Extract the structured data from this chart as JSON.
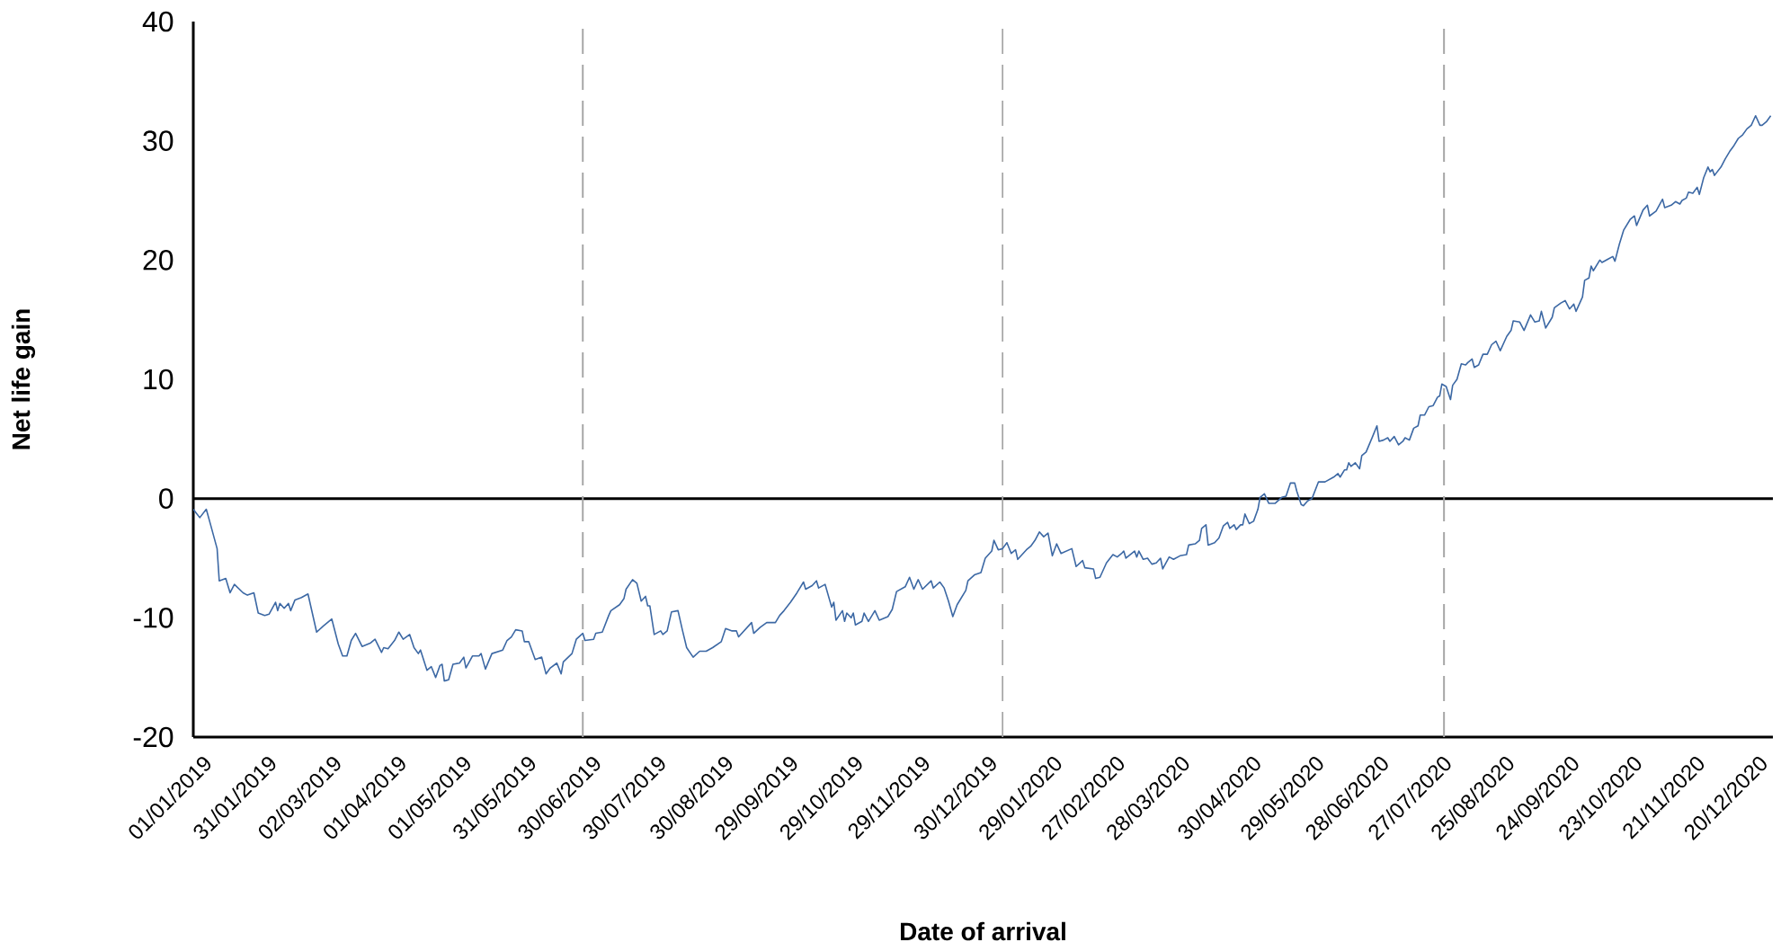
{
  "chart_data": {
    "type": "line",
    "xlabel": "Date of arrival",
    "ylabel": "Net life gain",
    "xlim": [
      "2019-01-01",
      "2020-12-31"
    ],
    "ylim": [
      -20,
      40
    ],
    "yticks": [
      -20,
      -10,
      0,
      10,
      20,
      30,
      40
    ],
    "xticks": [
      {
        "value": "2019-01-01",
        "label": "01/01/2019"
      },
      {
        "value": "2019-01-31",
        "label": "31/01/2019"
      },
      {
        "value": "2019-03-02",
        "label": "02/03/2019"
      },
      {
        "value": "2019-04-01",
        "label": "01/04/2019"
      },
      {
        "value": "2019-05-01",
        "label": "01/05/2019"
      },
      {
        "value": "2019-05-31",
        "label": "31/05/2019"
      },
      {
        "value": "2019-06-30",
        "label": "30/06/2019"
      },
      {
        "value": "2019-07-30",
        "label": "30/07/2019"
      },
      {
        "value": "2019-08-30",
        "label": "30/08/2019"
      },
      {
        "value": "2019-09-29",
        "label": "29/09/2019"
      },
      {
        "value": "2019-10-29",
        "label": "29/10/2019"
      },
      {
        "value": "2019-11-29",
        "label": "29/11/2019"
      },
      {
        "value": "2019-12-30",
        "label": "30/12/2019"
      },
      {
        "value": "2020-01-29",
        "label": "29/01/2020"
      },
      {
        "value": "2020-02-27",
        "label": "27/02/2020"
      },
      {
        "value": "2020-03-28",
        "label": "28/03/2020"
      },
      {
        "value": "2020-04-30",
        "label": "30/04/2020"
      },
      {
        "value": "2020-05-29",
        "label": "29/05/2020"
      },
      {
        "value": "2020-06-28",
        "label": "28/06/2020"
      },
      {
        "value": "2020-07-27",
        "label": "27/07/2020"
      },
      {
        "value": "2020-08-25",
        "label": "25/08/2020"
      },
      {
        "value": "2020-09-24",
        "label": "24/09/2020"
      },
      {
        "value": "2020-10-23",
        "label": "23/10/2020"
      },
      {
        "value": "2020-11-21",
        "label": "21/11/2020"
      },
      {
        "value": "2020-12-20",
        "label": "20/12/2020"
      }
    ],
    "ref_lines": [
      {
        "axis": "y",
        "value": 0,
        "color": "#000000",
        "line_style": "solid"
      },
      {
        "axis": "x",
        "value": "2019-06-30",
        "color": "#a6a6a6",
        "line_style": "dashed"
      },
      {
        "axis": "x",
        "value": "2020-01-10",
        "color": "#a6a6a6",
        "line_style": "dashed"
      },
      {
        "axis": "x",
        "value": "2020-08-01",
        "color": "#a6a6a6",
        "line_style": "dashed"
      }
    ],
    "x": [
      "2019-01-01",
      "2019-01-04",
      "2019-01-07",
      "2019-01-09",
      "2019-01-12",
      "2019-01-13",
      "2019-01-16",
      "2019-01-18",
      "2019-01-20",
      "2019-01-24",
      "2019-01-26",
      "2019-01-29",
      "2019-01-31",
      "2019-02-03",
      "2019-02-05",
      "2019-02-08",
      "2019-02-09",
      "2019-02-10",
      "2019-02-12",
      "2019-02-14",
      "2019-02-15",
      "2019-02-17",
      "2019-02-20",
      "2019-02-23",
      "2019-02-25",
      "2019-02-27",
      "2019-03-02",
      "2019-03-06",
      "2019-03-07",
      "2019-03-09",
      "2019-03-11",
      "2019-03-13",
      "2019-03-15",
      "2019-03-17",
      "2019-03-20",
      "2019-03-24",
      "2019-03-26",
      "2019-03-29",
      "2019-03-30",
      "2019-04-01",
      "2019-04-04",
      "2019-04-06",
      "2019-04-08",
      "2019-04-11",
      "2019-04-13",
      "2019-04-15",
      "2019-04-16",
      "2019-04-19",
      "2019-04-21",
      "2019-04-23",
      "2019-04-25",
      "2019-04-26",
      "2019-04-27",
      "2019-04-29",
      "2019-05-01",
      "2019-05-04",
      "2019-05-06",
      "2019-05-07",
      "2019-05-10",
      "2019-05-13",
      "2019-05-14",
      "2019-05-16",
      "2019-05-19",
      "2019-05-24",
      "2019-05-26",
      "2019-05-28",
      "2019-05-30",
      "2019-06-02",
      "2019-06-03",
      "2019-06-05",
      "2019-06-08",
      "2019-06-11",
      "2019-06-13",
      "2019-06-15",
      "2019-06-18",
      "2019-06-20",
      "2019-06-21",
      "2019-06-25",
      "2019-06-27",
      "2019-06-30",
      "2019-07-01",
      "2019-07-05",
      "2019-07-06",
      "2019-07-09",
      "2019-07-12",
      "2019-07-13",
      "2019-07-17",
      "2019-07-19",
      "2019-07-20",
      "2019-07-23",
      "2019-07-25",
      "2019-07-27",
      "2019-07-29",
      "2019-07-30",
      "2019-07-31",
      "2019-08-02",
      "2019-08-05",
      "2019-08-06",
      "2019-08-08",
      "2019-08-10",
      "2019-08-13",
      "2019-08-15",
      "2019-08-17",
      "2019-08-20",
      "2019-08-23",
      "2019-08-26",
      "2019-08-29",
      "2019-09-02",
      "2019-09-04",
      "2019-09-07",
      "2019-09-09",
      "2019-09-10",
      "2019-09-12",
      "2019-09-16",
      "2019-09-17",
      "2019-09-20",
      "2019-09-23",
      "2019-09-27",
      "2019-09-29",
      "2019-10-01",
      "2019-10-04",
      "2019-10-07",
      "2019-10-10",
      "2019-10-11",
      "2019-10-14",
      "2019-10-16",
      "2019-10-17",
      "2019-10-20",
      "2019-10-23",
      "2019-10-24",
      "2019-10-25",
      "2019-10-28",
      "2019-10-29",
      "2019-10-30",
      "2019-11-01",
      "2019-11-02",
      "2019-11-03",
      "2019-11-06",
      "2019-11-07",
      "2019-11-09",
      "2019-11-12",
      "2019-11-14",
      "2019-11-18",
      "2019-11-20",
      "2019-11-22",
      "2019-11-26",
      "2019-11-28",
      "2019-11-30",
      "2019-12-02",
      "2019-12-04",
      "2019-12-08",
      "2019-12-09",
      "2019-12-12",
      "2019-12-14",
      "2019-12-16",
      "2019-12-18",
      "2019-12-20",
      "2019-12-24",
      "2019-12-25",
      "2019-12-28",
      "2019-12-31",
      "2020-01-02",
      "2020-01-05",
      "2020-01-06",
      "2020-01-08",
      "2020-01-10",
      "2020-01-12",
      "2020-01-14",
      "2020-01-16",
      "2020-01-17",
      "2020-01-19",
      "2020-01-21",
      "2020-01-23",
      "2020-01-25",
      "2020-01-27",
      "2020-01-29",
      "2020-01-31",
      "2020-02-02",
      "2020-02-04",
      "2020-02-06",
      "2020-02-11",
      "2020-02-13",
      "2020-02-16",
      "2020-02-17",
      "2020-02-21",
      "2020-02-22",
      "2020-02-24",
      "2020-02-27",
      "2020-03-01",
      "2020-03-03",
      "2020-03-05",
      "2020-03-06",
      "2020-03-07",
      "2020-03-11",
      "2020-03-12",
      "2020-03-13",
      "2020-03-15",
      "2020-03-17",
      "2020-03-19",
      "2020-03-21",
      "2020-03-23",
      "2020-03-24",
      "2020-03-27",
      "2020-03-29",
      "2020-04-01",
      "2020-04-04",
      "2020-04-05",
      "2020-04-08",
      "2020-04-10",
      "2020-04-11",
      "2020-04-13",
      "2020-04-14",
      "2020-04-17",
      "2020-04-19",
      "2020-04-21",
      "2020-04-23",
      "2020-04-24",
      "2020-04-26",
      "2020-04-27",
      "2020-04-29",
      "2020-04-30",
      "2020-05-01",
      "2020-05-03",
      "2020-05-05",
      "2020-05-07",
      "2020-05-08",
      "2020-05-10",
      "2020-05-12",
      "2020-05-15",
      "2020-05-18",
      "2020-05-20",
      "2020-05-22",
      "2020-05-24",
      "2020-05-25",
      "2020-05-27",
      "2020-05-28",
      "2020-05-30",
      "2020-06-01",
      "2020-06-04",
      "2020-06-07",
      "2020-06-11",
      "2020-06-13",
      "2020-06-14",
      "2020-06-16",
      "2020-06-17",
      "2020-06-18",
      "2020-06-19",
      "2020-06-21",
      "2020-06-23",
      "2020-06-24",
      "2020-06-26",
      "2020-06-29",
      "2020-07-01",
      "2020-07-02",
      "2020-07-04",
      "2020-07-06",
      "2020-07-07",
      "2020-07-09",
      "2020-07-11",
      "2020-07-13",
      "2020-07-14",
      "2020-07-16",
      "2020-07-18",
      "2020-07-20",
      "2020-07-21",
      "2020-07-23",
      "2020-07-25",
      "2020-07-27",
      "2020-07-29",
      "2020-07-30",
      "2020-07-31",
      "2020-08-02",
      "2020-08-04",
      "2020-08-05",
      "2020-08-07",
      "2020-08-09",
      "2020-08-11",
      "2020-08-12",
      "2020-08-14",
      "2020-08-15",
      "2020-08-17",
      "2020-08-19",
      "2020-08-21",
      "2020-08-23",
      "2020-08-25",
      "2020-08-27",
      "2020-08-30",
      "2020-09-01",
      "2020-09-02",
      "2020-09-05",
      "2020-09-07",
      "2020-09-10",
      "2020-09-12",
      "2020-09-14",
      "2020-09-15",
      "2020-09-17",
      "2020-09-19",
      "2020-09-20",
      "2020-09-21",
      "2020-09-24",
      "2020-09-26",
      "2020-09-28",
      "2020-09-30",
      "2020-10-01",
      "2020-10-02",
      "2020-10-04",
      "2020-10-05",
      "2020-10-07",
      "2020-10-08",
      "2020-10-09",
      "2020-10-12",
      "2020-10-13",
      "2020-10-16",
      "2020-10-18",
      "2020-10-19",
      "2020-10-21",
      "2020-10-23",
      "2020-10-26",
      "2020-10-28",
      "2020-10-29",
      "2020-11-01",
      "2020-11-03",
      "2020-11-04",
      "2020-11-07",
      "2020-11-10",
      "2020-11-11",
      "2020-11-14",
      "2020-11-16",
      "2020-11-18",
      "2020-11-19",
      "2020-11-21",
      "2020-11-22",
      "2020-11-24",
      "2020-11-26",
      "2020-11-27",
      "2020-11-29",
      "2020-12-01",
      "2020-12-02",
      "2020-12-03",
      "2020-12-04",
      "2020-12-07",
      "2020-12-09",
      "2020-12-11",
      "2020-12-13",
      "2020-12-15",
      "2020-12-17",
      "2020-12-19",
      "2020-12-21",
      "2020-12-23",
      "2020-12-25",
      "2020-12-26",
      "2020-12-28",
      "2020-12-30"
    ],
    "series": [
      {
        "color": "#3c68a4",
        "values": [
          -0.9,
          -1.6,
          -0.9,
          -2.2,
          -4.2,
          -6.9,
          -6.7,
          -7.9,
          -7.2,
          -7.9,
          -8.1,
          -7.9,
          -9.6,
          -9.8,
          -9.7,
          -8.7,
          -9.4,
          -8.8,
          -9.2,
          -8.8,
          -9.4,
          -8.5,
          -8.3,
          -8.0,
          -9.6,
          -11.2,
          -10.7,
          -10.1,
          -10.8,
          -12.2,
          -13.2,
          -13.2,
          -11.9,
          -11.3,
          -12.4,
          -12.1,
          -11.8,
          -12.9,
          -12.5,
          -12.6,
          -11.9,
          -11.2,
          -11.8,
          -11.4,
          -12.5,
          -13.0,
          -12.7,
          -14.4,
          -14.1,
          -15.0,
          -14.0,
          -13.9,
          -15.3,
          -15.2,
          -13.9,
          -13.8,
          -13.3,
          -14.2,
          -13.2,
          -13.2,
          -13.0,
          -14.3,
          -13.0,
          -12.7,
          -11.9,
          -11.6,
          -11.0,
          -11.1,
          -12.0,
          -12.0,
          -13.5,
          -13.3,
          -14.7,
          -14.2,
          -13.8,
          -14.7,
          -13.7,
          -13.0,
          -11.8,
          -11.3,
          -11.9,
          -11.8,
          -11.3,
          -11.2,
          -9.8,
          -9.4,
          -8.9,
          -8.4,
          -7.6,
          -6.8,
          -7.1,
          -8.6,
          -8.2,
          -9.0,
          -9.0,
          -11.4,
          -11.1,
          -11.4,
          -11.1,
          -9.5,
          -9.4,
          -11.0,
          -12.5,
          -13.3,
          -12.8,
          -12.8,
          -12.5,
          -12.0,
          -10.9,
          -11.1,
          -11.1,
          -11.6,
          -11.2,
          -10.4,
          -11.3,
          -10.8,
          -10.4,
          -10.4,
          -9.8,
          -9.4,
          -8.7,
          -7.9,
          -7.0,
          -7.6,
          -7.3,
          -6.9,
          -7.5,
          -7.2,
          -9.1,
          -8.7,
          -10.2,
          -9.4,
          -10.3,
          -9.6,
          -10.0,
          -9.6,
          -10.6,
          -10.3,
          -9.6,
          -10.3,
          -9.4,
          -10.2,
          -9.9,
          -9.3,
          -7.8,
          -7.4,
          -6.6,
          -7.6,
          -6.8,
          -7.6,
          -6.9,
          -7.5,
          -7.0,
          -7.5,
          -8.6,
          -9.9,
          -8.9,
          -7.7,
          -6.9,
          -6.4,
          -6.2,
          -5.0,
          -4.4,
          -3.5,
          -4.3,
          -4.2,
          -3.7,
          -4.6,
          -4.3,
          -5.1,
          -4.7,
          -4.3,
          -4.0,
          -3.5,
          -2.8,
          -3.2,
          -2.9,
          -4.8,
          -3.8,
          -4.6,
          -4.2,
          -5.7,
          -5.2,
          -5.8,
          -5.9,
          -6.7,
          -6.6,
          -5.4,
          -4.7,
          -4.9,
          -4.6,
          -4.4,
          -5.0,
          -4.4,
          -4.9,
          -4.4,
          -5.1,
          -5.0,
          -5.5,
          -5.4,
          -5.0,
          -5.9,
          -4.9,
          -5.1,
          -4.8,
          -4.7,
          -3.9,
          -3.8,
          -3.5,
          -2.5,
          -2.2,
          -3.9,
          -3.7,
          -3.3,
          -2.3,
          -2.0,
          -2.5,
          -2.2,
          -2.6,
          -2.2,
          -2.2,
          -1.3,
          -2.1,
          -1.9,
          -0.9,
          0.1,
          0.4,
          -0.4,
          -0.4,
          0.1,
          0.2,
          1.3,
          1.3,
          0.6,
          -0.5,
          -0.6,
          -0.2,
          0.0,
          1.4,
          1.4,
          1.8,
          2.1,
          1.8,
          2.4,
          2.4,
          3.0,
          2.7,
          3.0,
          2.5,
          3.6,
          3.9,
          5.2,
          6.1,
          4.8,
          4.9,
          5.1,
          4.8,
          5.2,
          4.5,
          4.8,
          5.1,
          4.9,
          5.9,
          6.1,
          7.0,
          7.0,
          7.7,
          7.8,
          8.5,
          8.6,
          9.6,
          9.4,
          8.3,
          9.5,
          10.0,
          11.3,
          11.2,
          11.4,
          11.7,
          11.0,
          11.2,
          12.1,
          12.1,
          12.9,
          13.2,
          12.4,
          13.6,
          14.1,
          14.9,
          14.8,
          14.1,
          15.4,
          14.8,
          14.9,
          15.7,
          14.3,
          14.9,
          15.2,
          16.0,
          16.4,
          16.6,
          15.9,
          16.3,
          15.7,
          16.1,
          16.9,
          18.3,
          18.5,
          19.5,
          19.1,
          20.0,
          19.8,
          20.1,
          20.3,
          19.9,
          21.3,
          22.5,
          23.4,
          23.7,
          22.9,
          24.2,
          24.6,
          23.7,
          24.1,
          25.1,
          24.4,
          24.6,
          24.9,
          24.7,
          25.0,
          25.2,
          25.7,
          25.6,
          26.1,
          25.5,
          26.9,
          27.8,
          27.4,
          27.6,
          27.1,
          27.8,
          28.5,
          29.1,
          29.6,
          30.2,
          30.5,
          31.0,
          31.3,
          32.1,
          31.3,
          31.3,
          31.6,
          32.1
        ]
      }
    ]
  }
}
